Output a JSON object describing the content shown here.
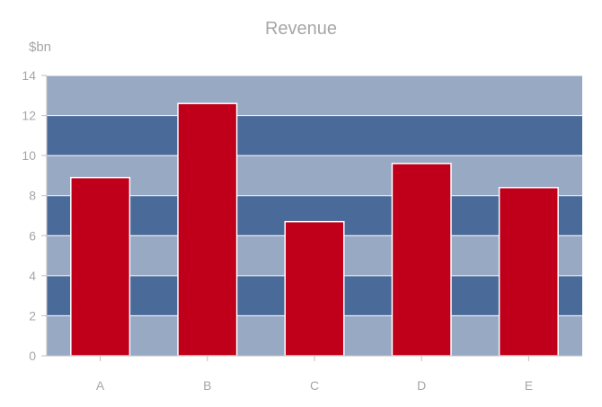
{
  "chart_data": {
    "type": "bar",
    "title": "Revenue",
    "ylabel": "$bn",
    "xlabel": "",
    "categories": [
      "A",
      "B",
      "C",
      "D",
      "E"
    ],
    "values": [
      8.9,
      12.6,
      6.7,
      9.6,
      8.4
    ],
    "ylim": [
      0,
      14
    ],
    "yticks": [
      0,
      2,
      4,
      6,
      8,
      10,
      12,
      14
    ],
    "grid": true,
    "legend": "none",
    "colors": {
      "bar": "#c0001a",
      "bar_stroke": "#ffffff",
      "band_light": "#98a9c4",
      "band_dark": "#4a6a99",
      "gridline": "#ffffff",
      "axis": "#bfbfbf",
      "text": "#a6a6a6"
    }
  }
}
